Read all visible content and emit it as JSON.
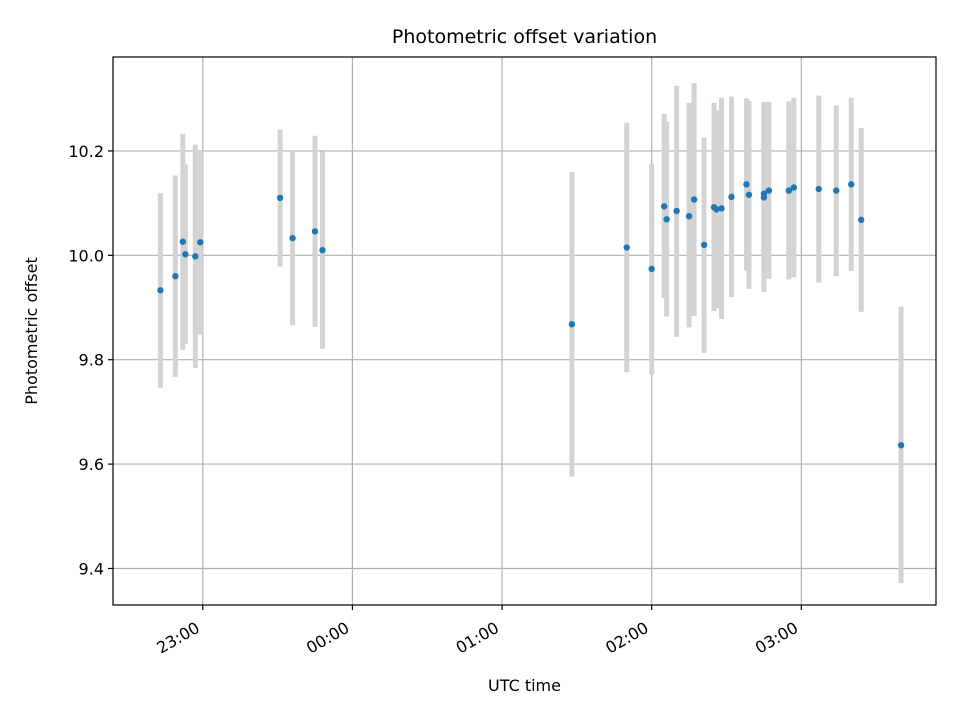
{
  "chart_data": {
    "type": "scatter",
    "title": "Photometric offset variation",
    "xlabel": "UTC time",
    "ylabel": "Photometric offset",
    "x_unit": "UTC",
    "xlim": [
      "22:24",
      "27:54"
    ],
    "ylim": [
      9.33,
      10.38
    ],
    "grid": true,
    "marker_color": "#1f77b4",
    "errorbar_color": "#d3d3d3",
    "x_ticks": [
      "23:00",
      "00:00",
      "01:00",
      "02:00",
      "03:00"
    ],
    "y_ticks": [
      9.4,
      9.6,
      9.8,
      10.0,
      10.2
    ],
    "series": [
      {
        "points": [
          {
            "x": "22:43",
            "y": 9.933,
            "lo": 9.746,
            "hi": 10.119
          },
          {
            "x": "22:49",
            "y": 9.96,
            "lo": 9.767,
            "hi": 10.153
          },
          {
            "x": "22:52",
            "y": 10.026,
            "lo": 9.819,
            "hi": 10.233
          },
          {
            "x": "22:53",
            "y": 10.002,
            "lo": 9.83,
            "hi": 10.174
          },
          {
            "x": "22:57",
            "y": 9.998,
            "lo": 9.784,
            "hi": 10.212
          },
          {
            "x": "22:59",
            "y": 10.025,
            "lo": 9.848,
            "hi": 10.202
          },
          {
            "x": "23:31",
            "y": 10.11,
            "lo": 9.978,
            "hi": 10.241
          },
          {
            "x": "23:36",
            "y": 10.033,
            "lo": 9.866,
            "hi": 10.2
          },
          {
            "x": "23:45",
            "y": 10.046,
            "lo": 9.863,
            "hi": 10.229
          },
          {
            "x": "23:48",
            "y": 10.01,
            "lo": 9.821,
            "hi": 10.199
          },
          {
            "x": "25:28",
            "y": 9.868,
            "lo": 9.576,
            "hi": 10.16
          },
          {
            "x": "25:50",
            "y": 10.015,
            "lo": 9.776,
            "hi": 10.254
          },
          {
            "x": "26:00",
            "y": 9.974,
            "lo": 9.772,
            "hi": 10.175
          },
          {
            "x": "26:05",
            "y": 10.094,
            "lo": 9.918,
            "hi": 10.271
          },
          {
            "x": "26:06",
            "y": 10.069,
            "lo": 9.883,
            "hi": 10.256
          },
          {
            "x": "26:10",
            "y": 10.085,
            "lo": 9.844,
            "hi": 10.325
          },
          {
            "x": "26:15",
            "y": 10.075,
            "lo": 9.862,
            "hi": 10.292
          },
          {
            "x": "26:17",
            "y": 10.107,
            "lo": 9.884,
            "hi": 10.33
          },
          {
            "x": "26:21",
            "y": 10.02,
            "lo": 9.813,
            "hi": 10.226
          },
          {
            "x": "26:25",
            "y": 10.092,
            "lo": 9.893,
            "hi": 10.292
          },
          {
            "x": "26:26",
            "y": 10.088,
            "lo": 9.899,
            "hi": 10.278
          },
          {
            "x": "26:28",
            "y": 10.09,
            "lo": 9.878,
            "hi": 10.302
          },
          {
            "x": "26:32",
            "y": 10.112,
            "lo": 9.92,
            "hi": 10.304
          },
          {
            "x": "26:38",
            "y": 10.136,
            "lo": 9.971,
            "hi": 10.301
          },
          {
            "x": "26:39",
            "y": 10.116,
            "lo": 9.936,
            "hi": 10.296
          },
          {
            "x": "26:45",
            "y": 10.118,
            "lo": 9.93,
            "hi": 10.294
          },
          {
            "x": "26:45",
            "y": 10.111,
            "lo": 9.932,
            "hi": 10.29
          },
          {
            "x": "26:47",
            "y": 10.124,
            "lo": 9.955,
            "hi": 10.294
          },
          {
            "x": "26:55",
            "y": 10.124,
            "lo": 9.954,
            "hi": 10.295
          },
          {
            "x": "26:57",
            "y": 10.13,
            "lo": 9.958,
            "hi": 10.302
          },
          {
            "x": "27:07",
            "y": 10.127,
            "lo": 9.948,
            "hi": 10.306
          },
          {
            "x": "27:14",
            "y": 10.124,
            "lo": 9.96,
            "hi": 10.287
          },
          {
            "x": "27:20",
            "y": 10.136,
            "lo": 9.97,
            "hi": 10.302
          },
          {
            "x": "27:24",
            "y": 10.068,
            "lo": 9.892,
            "hi": 10.244
          },
          {
            "x": "27:40",
            "y": 9.636,
            "lo": 9.372,
            "hi": 9.902
          }
        ]
      }
    ]
  }
}
